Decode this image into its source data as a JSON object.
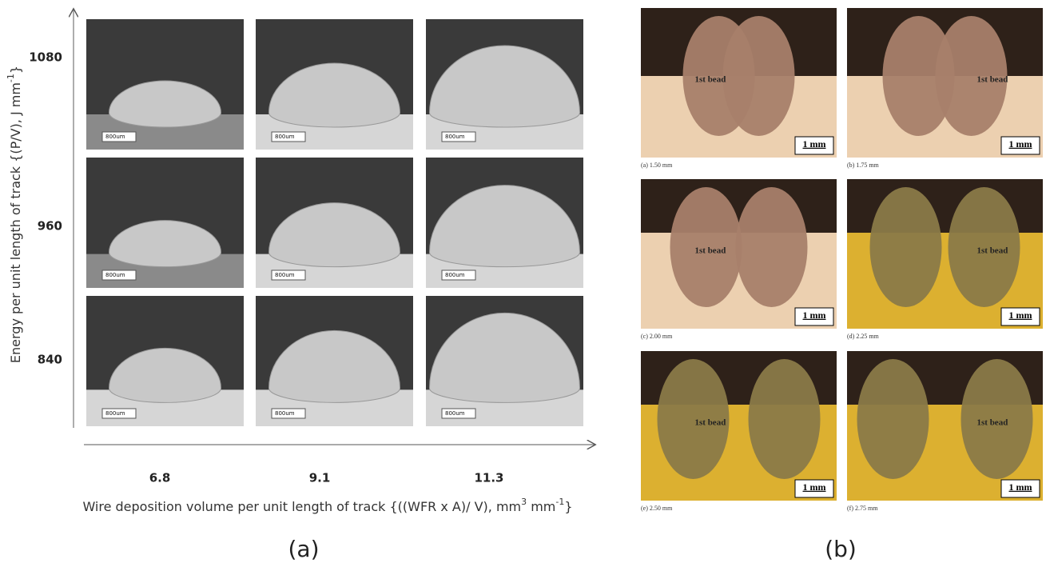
{
  "panel_a": {
    "y_axis_label": {
      "text": "Energy per unit length of track {(P/V), J mm",
      "sup": "-1",
      "end": "}"
    },
    "y_labels": [
      1080,
      960,
      840
    ],
    "x_labels": [
      6.8,
      9.1,
      11.3
    ],
    "x_axis_label": {
      "text": "Wire deposition volume per unit length of track  {((WFR x A)/ V), mm",
      "sup1": "3",
      "mid": " mm",
      "sup2": "-1",
      "end": "}"
    },
    "scale_bar": "800um",
    "caption": "(a)"
  },
  "panel_b": {
    "images": [
      {
        "label": "1st bead",
        "scale_bar": "1 mm",
        "caption": "(a) 1.50 mm"
      },
      {
        "label": "1st bead",
        "scale_bar": "1 mm",
        "caption": "(b) 1.75 mm"
      },
      {
        "label": "1st bead",
        "scale_bar": "1 mm",
        "caption": "(c) 2.00 mm"
      },
      {
        "label": "1st bead",
        "scale_bar": "1 mm",
        "caption": "(d) 2.25 mm"
      },
      {
        "label": "1st bead",
        "scale_bar": "1 mm",
        "caption": "(e) 2.50 mm"
      },
      {
        "label": "1st bead",
        "scale_bar": "1 mm",
        "caption": "(f) 2.75 mm"
      }
    ],
    "caption": "(b)"
  }
}
